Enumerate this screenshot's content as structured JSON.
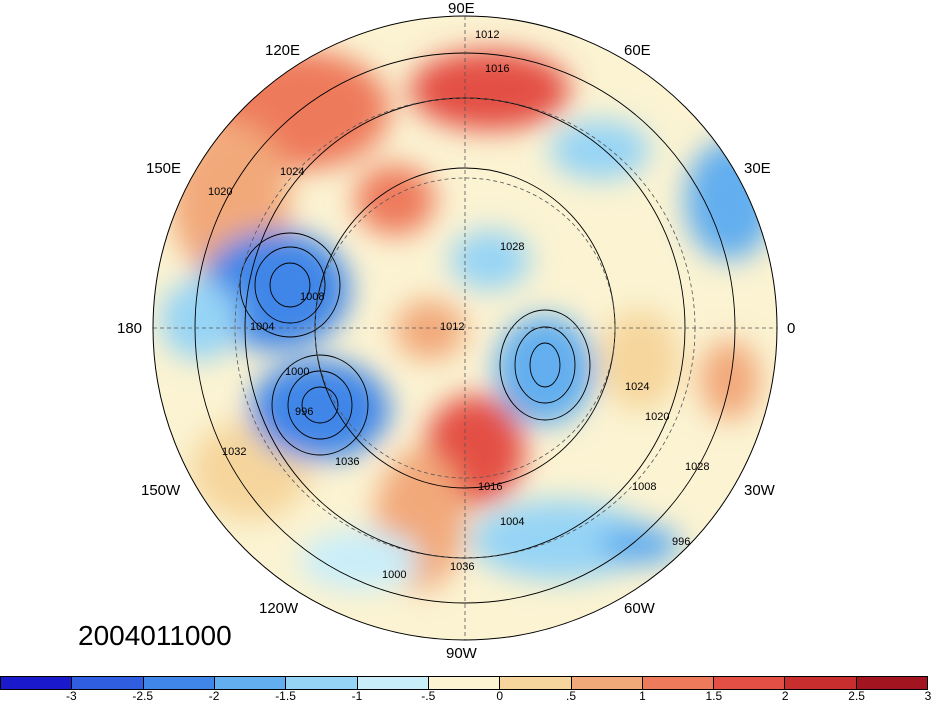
{
  "map": {
    "projection": "polar-stereographic-north",
    "longitude_labels": {
      "e90": "90E",
      "e120": "120E",
      "e60": "60E",
      "e150": "150E",
      "e30": "30E",
      "lon180": "180",
      "lon0": "0",
      "w150": "150W",
      "w30": "30W",
      "w120": "120W",
      "w60": "60W",
      "w90": "90W"
    },
    "contour_labels": [
      "1012",
      "1016",
      "1020",
      "1024",
      "1028",
      "1008",
      "1004",
      "1000",
      "996",
      "1036",
      "1032"
    ],
    "date": "2004011000"
  },
  "colorbar": {
    "colors": [
      "#1a1acc",
      "#2f5ee0",
      "#3f86e8",
      "#62aeef",
      "#96d4f5",
      "#c9eefa",
      "#fbf3d2",
      "#f6d69c",
      "#f2a97a",
      "#ee7a5c",
      "#e44f45",
      "#c92e2e",
      "#a11420"
    ],
    "ticks": [
      "-3",
      "-2.5",
      "-2",
      "-1.5",
      "-1",
      "-.5",
      "0",
      ".5",
      "1",
      "1.5",
      "2",
      "2.5",
      "3"
    ]
  }
}
